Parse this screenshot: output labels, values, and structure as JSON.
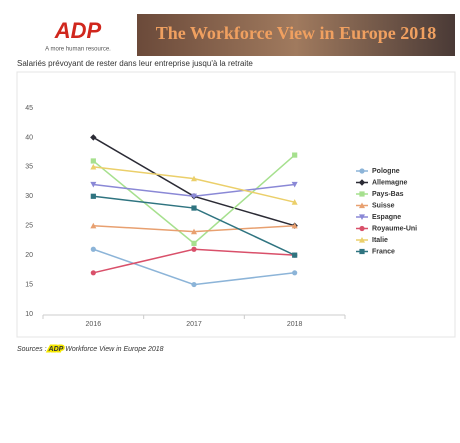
{
  "header": {
    "logo": "ADP",
    "tagline": "A more human resource.",
    "banner": "The Workforce View in Europe 2018"
  },
  "chart_data": {
    "type": "line",
    "title": "Salariés prévoyant de rester dans leur entreprise jusqu'à la retraite",
    "categories": [
      "2016",
      "2017",
      "2018"
    ],
    "series": [
      {
        "name": "Pologne",
        "color": "#8cb4d8",
        "marker": "circle",
        "values": [
          21,
          15,
          17
        ]
      },
      {
        "name": "Allemagne",
        "color": "#2b2b35",
        "marker": "diamond",
        "values": [
          40,
          30,
          25
        ]
      },
      {
        "name": "Pays-Bas",
        "color": "#a6e08e",
        "marker": "square",
        "values": [
          36,
          22,
          37
        ]
      },
      {
        "name": "Suisse",
        "color": "#e8a070",
        "marker": "triangle",
        "values": [
          25,
          24,
          25
        ]
      },
      {
        "name": "Espagne",
        "color": "#8a88d6",
        "marker": "triangle-down",
        "values": [
          32,
          30,
          32
        ]
      },
      {
        "name": "Royaume-Uni",
        "color": "#d9506a",
        "marker": "circle",
        "values": [
          17,
          21,
          20
        ]
      },
      {
        "name": "Italie",
        "color": "#ebcf6a",
        "marker": "triangle",
        "values": [
          35,
          33,
          29
        ]
      },
      {
        "name": "France",
        "color": "#2f7480",
        "marker": "square",
        "values": [
          30,
          28,
          20
        ]
      }
    ],
    "ylim": [
      10,
      45
    ],
    "yticks": [
      10,
      15,
      20,
      25,
      30,
      35,
      40,
      45
    ],
    "grid": false,
    "source": {
      "prefix": "Sources :",
      "brand": "ADP",
      "rest": "Workforce View in Europe 2018"
    }
  }
}
